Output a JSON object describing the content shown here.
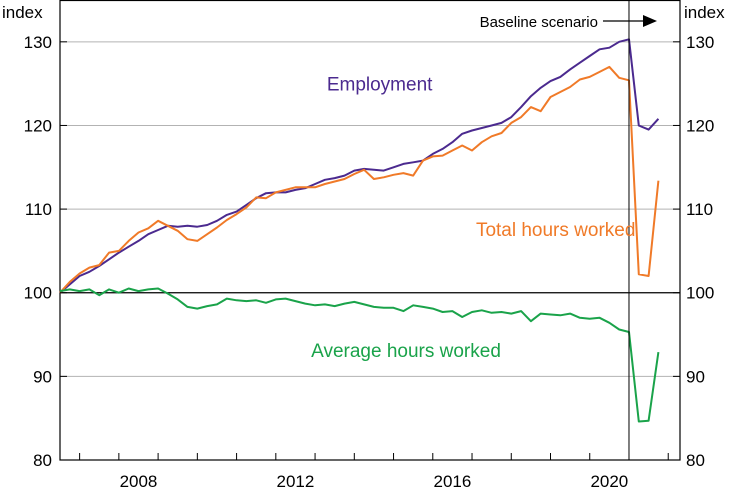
{
  "chart_data": {
    "type": "line",
    "left_unit": "index",
    "right_unit": "index",
    "ylim": [
      80,
      135
    ],
    "yticks": [
      80,
      90,
      100,
      110,
      120,
      130
    ],
    "xlim": [
      2005.5,
      2021.3
    ],
    "xticks": [
      {
        "year": 2008,
        "label": "2008"
      },
      {
        "year": 2012,
        "label": "2012"
      },
      {
        "year": 2016,
        "label": "2016"
      },
      {
        "year": 2020,
        "label": "2020"
      }
    ],
    "grid": true,
    "baseline_value": 100,
    "annotation": {
      "text": "Baseline scenario",
      "at_year": 2020.0
    },
    "series": [
      {
        "name": "Employment",
        "color": "#4b2a8f",
        "points": [
          [
            2005.5,
            100.0
          ],
          [
            2005.75,
            101.0
          ],
          [
            2006.0,
            102.0
          ],
          [
            2006.25,
            102.5
          ],
          [
            2006.5,
            103.2
          ],
          [
            2006.75,
            104.0
          ],
          [
            2007.0,
            104.8
          ],
          [
            2007.25,
            105.5
          ],
          [
            2007.5,
            106.2
          ],
          [
            2007.75,
            107.0
          ],
          [
            2008.0,
            107.5
          ],
          [
            2008.25,
            108.0
          ],
          [
            2008.5,
            107.9
          ],
          [
            2008.75,
            108.0
          ],
          [
            2009.0,
            107.9
          ],
          [
            2009.25,
            108.1
          ],
          [
            2009.5,
            108.6
          ],
          [
            2009.75,
            109.3
          ],
          [
            2010.0,
            109.7
          ],
          [
            2010.25,
            110.5
          ],
          [
            2010.5,
            111.3
          ],
          [
            2010.75,
            111.9
          ],
          [
            2011.0,
            112.0
          ],
          [
            2011.25,
            112.0
          ],
          [
            2011.5,
            112.3
          ],
          [
            2011.75,
            112.5
          ],
          [
            2012.0,
            113.0
          ],
          [
            2012.25,
            113.5
          ],
          [
            2012.5,
            113.7
          ],
          [
            2012.75,
            114.0
          ],
          [
            2013.0,
            114.6
          ],
          [
            2013.25,
            114.8
          ],
          [
            2013.5,
            114.7
          ],
          [
            2013.75,
            114.6
          ],
          [
            2014.0,
            115.0
          ],
          [
            2014.25,
            115.4
          ],
          [
            2014.5,
            115.6
          ],
          [
            2014.75,
            115.8
          ],
          [
            2015.0,
            116.6
          ],
          [
            2015.25,
            117.2
          ],
          [
            2015.5,
            118.0
          ],
          [
            2015.75,
            119.0
          ],
          [
            2016.0,
            119.4
          ],
          [
            2016.25,
            119.7
          ],
          [
            2016.5,
            120.0
          ],
          [
            2016.75,
            120.3
          ],
          [
            2017.0,
            121.0
          ],
          [
            2017.25,
            122.2
          ],
          [
            2017.5,
            123.5
          ],
          [
            2017.75,
            124.5
          ],
          [
            2018.0,
            125.3
          ],
          [
            2018.25,
            125.8
          ],
          [
            2018.5,
            126.7
          ],
          [
            2018.75,
            127.5
          ],
          [
            2019.0,
            128.3
          ],
          [
            2019.25,
            129.1
          ],
          [
            2019.5,
            129.3
          ],
          [
            2019.75,
            130.0
          ],
          [
            2020.0,
            130.3
          ],
          [
            2020.25,
            120.0
          ],
          [
            2020.5,
            119.5
          ],
          [
            2020.75,
            120.8
          ]
        ]
      },
      {
        "name": "Total hours worked",
        "color": "#f07a28",
        "points": [
          [
            2005.5,
            100.0
          ],
          [
            2005.75,
            101.3
          ],
          [
            2006.0,
            102.3
          ],
          [
            2006.25,
            103.0
          ],
          [
            2006.5,
            103.3
          ],
          [
            2006.75,
            104.8
          ],
          [
            2007.0,
            105.0
          ],
          [
            2007.25,
            106.2
          ],
          [
            2007.5,
            107.2
          ],
          [
            2007.75,
            107.7
          ],
          [
            2008.0,
            108.6
          ],
          [
            2008.25,
            108.0
          ],
          [
            2008.5,
            107.4
          ],
          [
            2008.75,
            106.4
          ],
          [
            2009.0,
            106.2
          ],
          [
            2009.25,
            107.0
          ],
          [
            2009.5,
            107.8
          ],
          [
            2009.75,
            108.7
          ],
          [
            2010.0,
            109.4
          ],
          [
            2010.25,
            110.2
          ],
          [
            2010.5,
            111.4
          ],
          [
            2010.75,
            111.3
          ],
          [
            2011.0,
            112.0
          ],
          [
            2011.25,
            112.3
          ],
          [
            2011.5,
            112.6
          ],
          [
            2011.75,
            112.6
          ],
          [
            2012.0,
            112.6
          ],
          [
            2012.25,
            113.0
          ],
          [
            2012.5,
            113.3
          ],
          [
            2012.75,
            113.6
          ],
          [
            2013.0,
            114.2
          ],
          [
            2013.25,
            114.7
          ],
          [
            2013.5,
            113.6
          ],
          [
            2013.75,
            113.8
          ],
          [
            2014.0,
            114.1
          ],
          [
            2014.25,
            114.3
          ],
          [
            2014.5,
            114.0
          ],
          [
            2014.75,
            115.8
          ],
          [
            2015.0,
            116.3
          ],
          [
            2015.25,
            116.4
          ],
          [
            2015.5,
            117.0
          ],
          [
            2015.75,
            117.6
          ],
          [
            2016.0,
            117.0
          ],
          [
            2016.25,
            118.0
          ],
          [
            2016.5,
            118.7
          ],
          [
            2016.75,
            119.1
          ],
          [
            2017.0,
            120.3
          ],
          [
            2017.25,
            121.0
          ],
          [
            2017.5,
            122.2
          ],
          [
            2017.75,
            121.7
          ],
          [
            2018.0,
            123.4
          ],
          [
            2018.25,
            124.0
          ],
          [
            2018.5,
            124.6
          ],
          [
            2018.75,
            125.5
          ],
          [
            2019.0,
            125.8
          ],
          [
            2019.25,
            126.4
          ],
          [
            2019.5,
            127.0
          ],
          [
            2019.75,
            125.7
          ],
          [
            2020.0,
            125.4
          ],
          [
            2020.25,
            102.2
          ],
          [
            2020.5,
            102.0
          ],
          [
            2020.75,
            113.4
          ]
        ]
      },
      {
        "name": "Average hours worked",
        "color": "#1aa34a",
        "points": [
          [
            2005.5,
            100.2
          ],
          [
            2005.75,
            100.4
          ],
          [
            2006.0,
            100.2
          ],
          [
            2006.25,
            100.4
          ],
          [
            2006.5,
            99.7
          ],
          [
            2006.75,
            100.4
          ],
          [
            2007.0,
            100.0
          ],
          [
            2007.25,
            100.5
          ],
          [
            2007.5,
            100.2
          ],
          [
            2007.75,
            100.4
          ],
          [
            2008.0,
            100.5
          ],
          [
            2008.25,
            99.9
          ],
          [
            2008.5,
            99.2
          ],
          [
            2008.75,
            98.3
          ],
          [
            2009.0,
            98.1
          ],
          [
            2009.25,
            98.4
          ],
          [
            2009.5,
            98.6
          ],
          [
            2009.75,
            99.3
          ],
          [
            2010.0,
            99.1
          ],
          [
            2010.25,
            99.0
          ],
          [
            2010.5,
            99.1
          ],
          [
            2010.75,
            98.8
          ],
          [
            2011.0,
            99.2
          ],
          [
            2011.25,
            99.3
          ],
          [
            2011.5,
            99.0
          ],
          [
            2011.75,
            98.7
          ],
          [
            2012.0,
            98.5
          ],
          [
            2012.25,
            98.6
          ],
          [
            2012.5,
            98.4
          ],
          [
            2012.75,
            98.7
          ],
          [
            2013.0,
            98.9
          ],
          [
            2013.25,
            98.6
          ],
          [
            2013.5,
            98.3
          ],
          [
            2013.75,
            98.2
          ],
          [
            2014.0,
            98.2
          ],
          [
            2014.25,
            97.8
          ],
          [
            2014.5,
            98.5
          ],
          [
            2014.75,
            98.3
          ],
          [
            2015.0,
            98.1
          ],
          [
            2015.25,
            97.7
          ],
          [
            2015.5,
            97.8
          ],
          [
            2015.75,
            97.1
          ],
          [
            2016.0,
            97.7
          ],
          [
            2016.25,
            97.9
          ],
          [
            2016.5,
            97.6
          ],
          [
            2016.75,
            97.7
          ],
          [
            2017.0,
            97.5
          ],
          [
            2017.25,
            97.8
          ],
          [
            2017.5,
            96.6
          ],
          [
            2017.75,
            97.5
          ],
          [
            2018.0,
            97.4
          ],
          [
            2018.25,
            97.3
          ],
          [
            2018.5,
            97.5
          ],
          [
            2018.75,
            97.0
          ],
          [
            2019.0,
            96.9
          ],
          [
            2019.25,
            97.0
          ],
          [
            2019.5,
            96.4
          ],
          [
            2019.75,
            95.6
          ],
          [
            2020.0,
            95.3
          ],
          [
            2020.25,
            84.6
          ],
          [
            2020.5,
            84.7
          ],
          [
            2020.75,
            92.9
          ]
        ]
      }
    ],
    "series_labels": [
      {
        "series": 0,
        "text": "Employment",
        "at": [
          2012.3,
          124.2
        ]
      },
      {
        "series": 1,
        "text": "Total hours worked",
        "at": [
          2016.1,
          106.8
        ]
      },
      {
        "series": 2,
        "text": "Average hours worked",
        "at": [
          2011.9,
          92.3
        ]
      }
    ]
  }
}
